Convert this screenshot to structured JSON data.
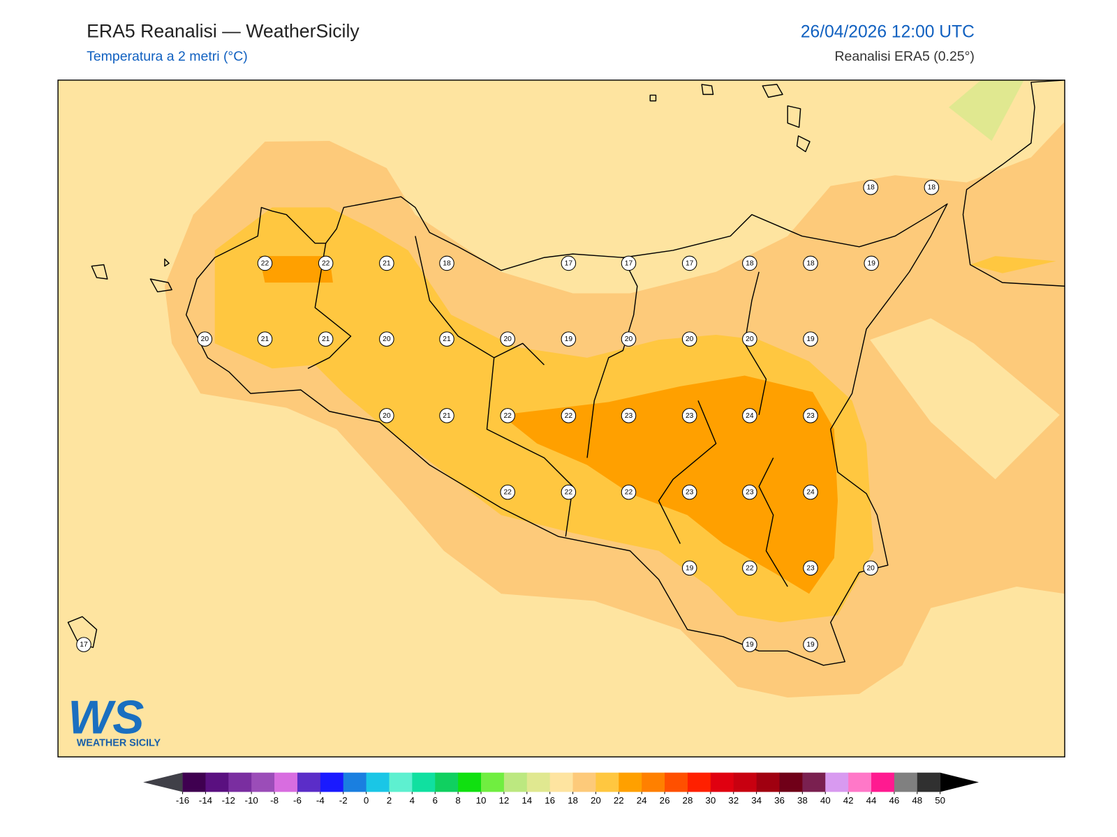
{
  "header": {
    "title": "ERA5 Reanalisi — WeatherSicily",
    "subtitle": "Temperatura a 2 metri (°C)",
    "datetime": "26/04/2026 12:00 UTC",
    "source": "Reanalisi ERA5 (0.25°)"
  },
  "map": {
    "stations": [
      18,
      18,
      22,
      22,
      21,
      18,
      17,
      17,
      17,
      18,
      18,
      19,
      20,
      21,
      21,
      20,
      21,
      20,
      19,
      20,
      20,
      20,
      19,
      20,
      21,
      22,
      22,
      23,
      23,
      24,
      23,
      22,
      22,
      22,
      23,
      23,
      24,
      19,
      22,
      23,
      20,
      17,
      19,
      19
    ]
  },
  "colorbar": {
    "ticks": [
      -16,
      -14,
      -12,
      -10,
      -8,
      -6,
      -4,
      -2,
      0,
      2,
      4,
      6,
      8,
      10,
      12,
      14,
      16,
      18,
      20,
      22,
      24,
      26,
      28,
      30,
      32,
      34,
      36,
      38,
      40,
      42,
      44,
      46,
      48,
      50
    ],
    "colors": [
      "#3f0050",
      "#5a1080",
      "#7a2ea0",
      "#9b4db8",
      "#d86de0",
      "#5b2dc8",
      "#1a1aff",
      "#1a7fe0",
      "#1ac6e6",
      "#5ef0d0",
      "#10e0a0",
      "#10d060",
      "#10e010",
      "#70ee40",
      "#bce880",
      "#e0e890",
      "#fee4a0",
      "#fdca7a",
      "#ffc740",
      "#ffa000",
      "#ff8000",
      "#ff5000",
      "#ff2000",
      "#e00010",
      "#c80010",
      "#a00010",
      "#700018",
      "#7a2050",
      "#d89af0",
      "#ff78c8",
      "#ff1a90",
      "#808080",
      "#303030"
    ],
    "under_color": "#404048",
    "over_color": "#000000"
  },
  "logo": {
    "mark": "WS",
    "text": "WEATHER SICILY"
  }
}
